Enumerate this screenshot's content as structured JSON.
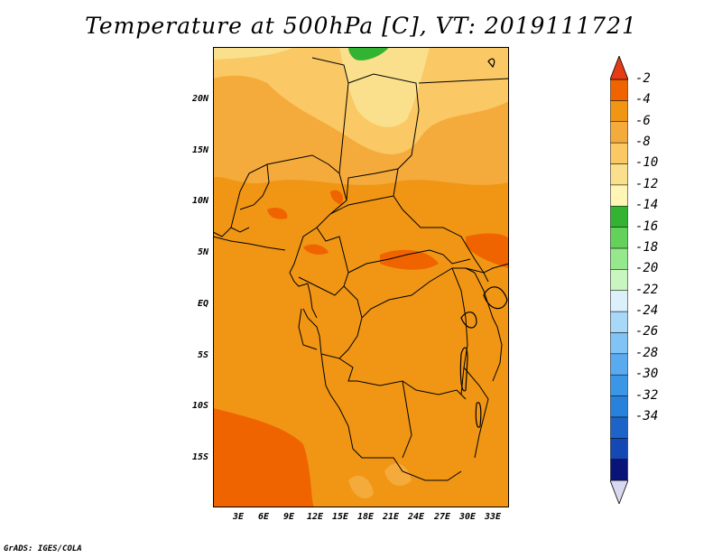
{
  "title": "Temperature at 500hPa [C], VT: 2019111721",
  "credit": "GrADS: IGES/COLA",
  "map": {
    "lat_ticks": [
      "20N",
      "15N",
      "10N",
      "5N",
      "EQ",
      "5S",
      "10S",
      "15S"
    ],
    "lon_ticks": [
      "3E",
      "6E",
      "9E",
      "12E",
      "15E",
      "18E",
      "21E",
      "24E",
      "27E",
      "30E",
      "33E"
    ]
  },
  "colorbar": {
    "labels": [
      "-2",
      "-4",
      "-6",
      "-8",
      "-10",
      "-12",
      "-14",
      "-16",
      "-18",
      "-20",
      "-22",
      "-24",
      "-26",
      "-28",
      "-30",
      "-32",
      "-34"
    ],
    "colors": [
      "#d8d8f0",
      "#0a1478",
      "#1448b4",
      "#1e64c8",
      "#2882dc",
      "#3c96e6",
      "#5aaaf0",
      "#82c3f5",
      "#a8d8f8",
      "#dcf0fc",
      "#c8f5c0",
      "#96e88c",
      "#64d25a",
      "#32b432",
      "#fff5b4",
      "#fae08c",
      "#fac864",
      "#f5aa3c",
      "#f09614",
      "#f06400",
      "#e63c14"
    ]
  }
}
